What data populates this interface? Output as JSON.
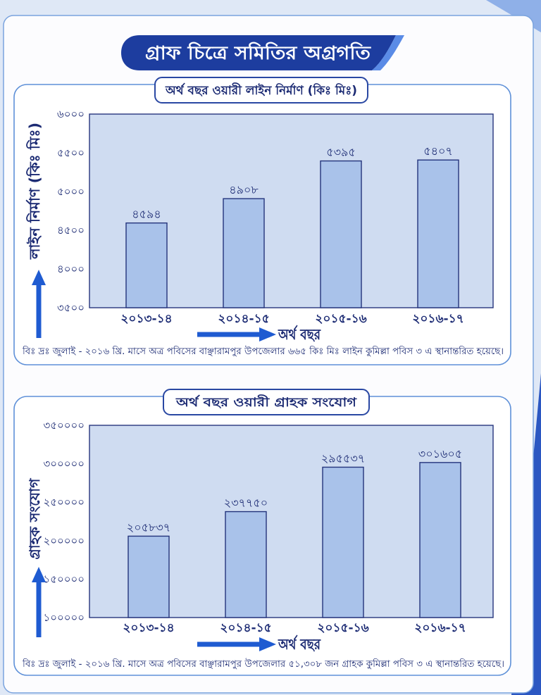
{
  "banner": {
    "title": "গ্রাফ চিত্রে সমিতির অগ্রগতি"
  },
  "colors": {
    "text": "#1b2a73",
    "plot_background": "#cfdcf1",
    "bar_fill": "#a9c2ea",
    "arrow": "#1f5bd1",
    "banner": "#1d3d9f",
    "frame": "#5e90d8"
  },
  "icons": {
    "y_axis_arrow": "up-arrow-icon",
    "x_axis_arrow": "right-arrow-icon"
  },
  "chart_data": [
    {
      "type": "bar",
      "title": "অর্থ বছর ওয়ারী লাইন নির্মাণ (কিঃ মিঃ)",
      "xlabel": "অর্থ বছর",
      "ylabel": "লাইন নির্মাণ (কিঃ মিঃ)",
      "categories": [
        "২০১৩-১৪",
        "২০১৪-১৫",
        "২০১৫-১৬",
        "২০১৬-১৭"
      ],
      "values": [
        4594,
        4908,
        5395,
        5407
      ],
      "value_labels": [
        "৪৫৯৪",
        "৪৯০৮",
        "৫৩৯৫",
        "৫৪০৭"
      ],
      "ylim": [
        3500,
        6000
      ],
      "yticks": [
        3500,
        4000,
        4500,
        5000,
        5500,
        6000
      ],
      "ytick_labels": [
        "৩৫০০",
        "৪০০০",
        "৪৫০০",
        "৫০০০",
        "৫৫০০",
        "৬০০০"
      ],
      "grid": false,
      "note": "বিঃ দ্রঃ জুলাই - ২০১৬ খ্রি. মাসে অত্র পবিসের বাঞ্ছারামপুর উপজেলার ৬৬৫ কিঃ মিঃ লাইন কুমিল্লা পবিস ৩ এ স্থানান্তরিত হয়েছে।"
    },
    {
      "type": "bar",
      "title": "অর্থ বছর ওয়ারী গ্রাহক সংযোগ",
      "xlabel": "অর্থ বছর",
      "ylabel": "গ্রাহক সংযোগ",
      "categories": [
        "২০১৩-১৪",
        "২০১৪-১৫",
        "২০১৫-১৬",
        "২০১৬-১৭"
      ],
      "values": [
        205837,
        237750,
        295537,
        301605
      ],
      "value_labels": [
        "২০৫৮৩৭",
        "২৩৭৭৫০",
        "২৯৫৫৩৭",
        "৩০১৬০৫"
      ],
      "ylim": [
        100000,
        350000
      ],
      "yticks": [
        100000,
        150000,
        200000,
        250000,
        300000,
        350000
      ],
      "ytick_labels": [
        "১০০০০০",
        "১৫০০০০",
        "২০০০০০",
        "২৫০০০০",
        "৩০০০০০",
        "৩৫০০০০"
      ],
      "grid": false,
      "note": "বিঃ দ্রঃ জুলাই - ২০১৬ খ্রি. মাসে অত্র পবিসের বাঞ্ছারামপুর উপজেলার ৫১,৩০৮ জন গ্রাহক কুমিল্লা পবিস ৩ এ স্থানান্তরিত হয়েছে।"
    }
  ]
}
